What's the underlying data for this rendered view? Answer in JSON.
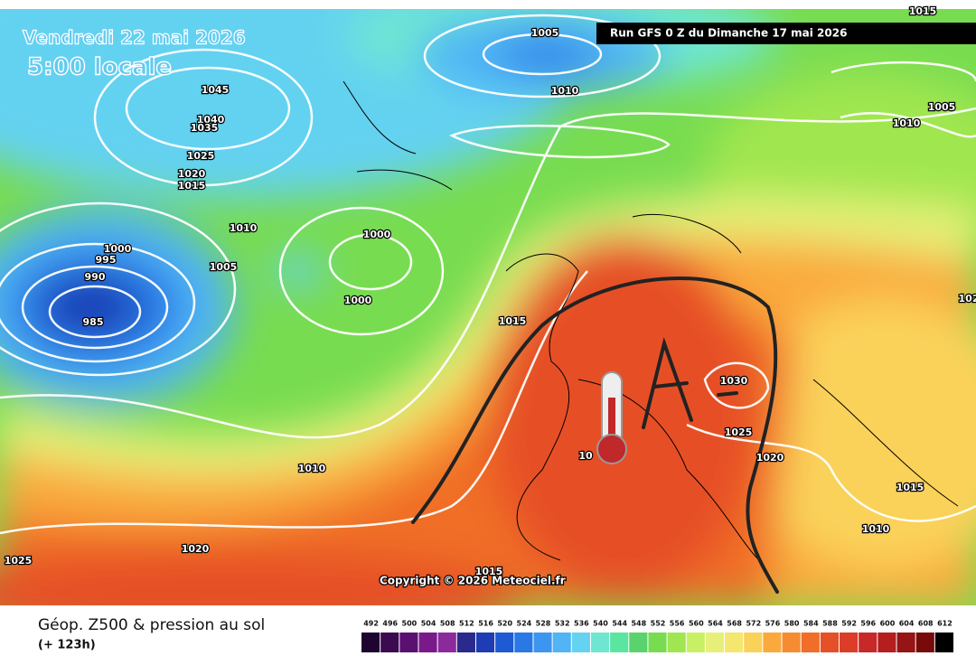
{
  "header": {
    "date": "Vendredi 22 mai 2026",
    "time": "5:00 locale",
    "run": "Run GFS 0 Z du Dimanche 17 mai 2026"
  },
  "map": {
    "copyright": "Copyright © 2026 Meteociel.fr",
    "isobar_labels": [
      "1005",
      "1010",
      "1045",
      "1040",
      "1035",
      "1025",
      "1020",
      "1015",
      "1010",
      "1000",
      "995",
      "990",
      "985",
      "1005",
      "1000",
      "1000",
      "1015",
      "1030",
      "1025",
      "1020",
      "1015",
      "1010",
      "1010",
      "1020",
      "1025",
      "1015",
      "1005",
      "1010",
      "1015",
      "102",
      "10"
    ]
  },
  "footer": {
    "title": "Géop. Z500 & pression au sol",
    "lead": "(+ 123h)"
  },
  "colorbar": {
    "values": [
      492,
      496,
      500,
      504,
      508,
      512,
      516,
      520,
      524,
      528,
      532,
      536,
      540,
      544,
      548,
      552,
      556,
      560,
      564,
      568,
      572,
      576,
      580,
      584,
      588,
      592,
      596,
      600,
      604,
      608,
      612
    ],
    "colors": [
      "#1e0530",
      "#3c0a50",
      "#5a1070",
      "#7a1a8a",
      "#8c2a9c",
      "#2a2a8c",
      "#1e3cb4",
      "#1e5ad2",
      "#2878e6",
      "#3c96f0",
      "#50b4f5",
      "#64d2f0",
      "#6ee6d2",
      "#5ae6a0",
      "#5ad26e",
      "#78dc50",
      "#a0e650",
      "#c8f064",
      "#e6f078",
      "#f5e66e",
      "#fad25a",
      "#faaa3c",
      "#f58c32",
      "#f06e28",
      "#e65028",
      "#dc3c28",
      "#c82828",
      "#b41e1e",
      "#961414",
      "#780a0a",
      "#000000"
    ]
  }
}
